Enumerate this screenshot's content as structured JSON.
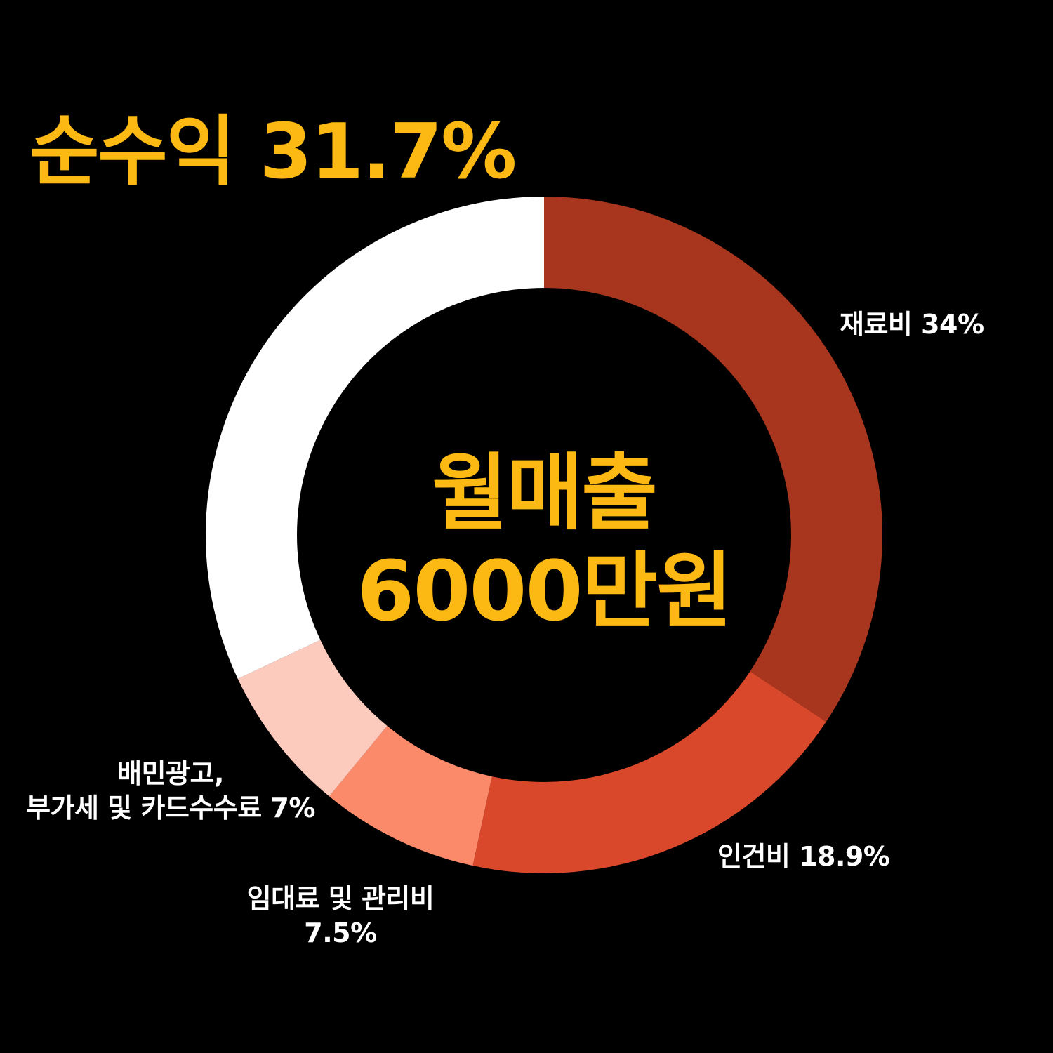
{
  "title": "순수익 31.7%",
  "center": {
    "line1": "월매출",
    "line2": "6000만원"
  },
  "labels": {
    "material": "재료비 34%",
    "labor": "인건비 18.9%",
    "baemin_line1": "배민광고,",
    "baemin_line2": "부가세 및 카드수수료 7%",
    "rent_line1": "임대료 및 관리비",
    "rent_line2": "7.5%"
  },
  "chart_data": {
    "type": "pie",
    "title": "순수익 31.7%",
    "center_label": "월매출 6000만원",
    "start": "top, clockwise",
    "slices": [
      {
        "label": "재료비",
        "value": 34,
        "color": "#A8361E"
      },
      {
        "label": "인건비",
        "value": 18.9,
        "color": "#D9482A"
      },
      {
        "label": "임대료 및 관리비",
        "value": 7.5,
        "color": "#FB8A6B"
      },
      {
        "label": "배민광고, 부가세 및 카드수수료",
        "value": 7,
        "color": "#FDCBBE"
      },
      {
        "label": "순수익",
        "value": 31.7,
        "color": "#FFFFFF"
      }
    ]
  }
}
